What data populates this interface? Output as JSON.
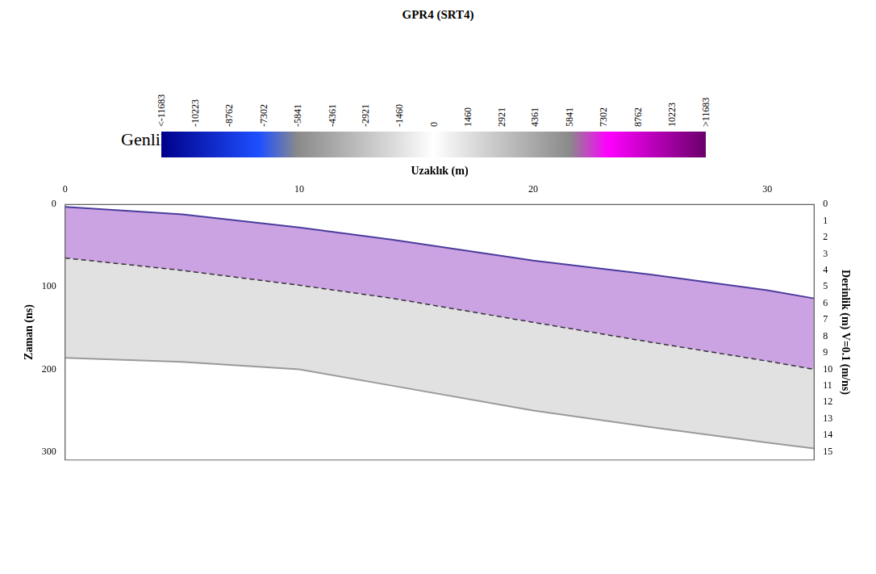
{
  "chart_data": {
    "type": "line",
    "title": "GPR4 (SRT4)",
    "x_label": "Uzaklık (m)",
    "y_label": "Zaman (ns)",
    "y2_label": "Derinlik (m) V=0.1 (m/ns)",
    "x": [
      0,
      5,
      10,
      14,
      20,
      25,
      30,
      32
    ],
    "series": [
      {
        "color": "#4b3c9e",
        "line_style": "solid",
        "values": [
          3,
          12,
          28,
          43,
          68,
          85,
          104,
          114
        ]
      },
      {
        "color": "#333333",
        "line_style": "dashed",
        "values": [
          65,
          80,
          98,
          114,
          143,
          167,
          190,
          200
        ]
      },
      {
        "color": "#9a9a9a",
        "line_style": "solid",
        "values": [
          186,
          191,
          200,
          220,
          250,
          270,
          289,
          296
        ]
      }
    ],
    "xlim": [
      0,
      32
    ],
    "xticks": [
      0,
      10,
      20,
      30
    ],
    "ylim": [
      0,
      310
    ],
    "yticks": [
      0,
      100,
      200,
      300
    ],
    "y2lim": [
      0,
      15.5
    ],
    "y2ticks": [
      0,
      1,
      2,
      3,
      4,
      5,
      6,
      7,
      8,
      9,
      10,
      11,
      12,
      13,
      14,
      15
    ],
    "grid": false,
    "colorbar": {
      "label": "Genlik",
      "range": [
        -11683,
        11683
      ],
      "ticks": [
        {
          "value": -11683,
          "label": "<-11683"
        },
        -10223,
        -8762,
        -7302,
        -5841,
        -4361,
        -2921,
        -1460,
        0,
        1460,
        2921,
        4361,
        5841,
        7302,
        8762,
        10223,
        {
          "value": 11683,
          "label": ">11683"
        }
      ]
    }
  }
}
